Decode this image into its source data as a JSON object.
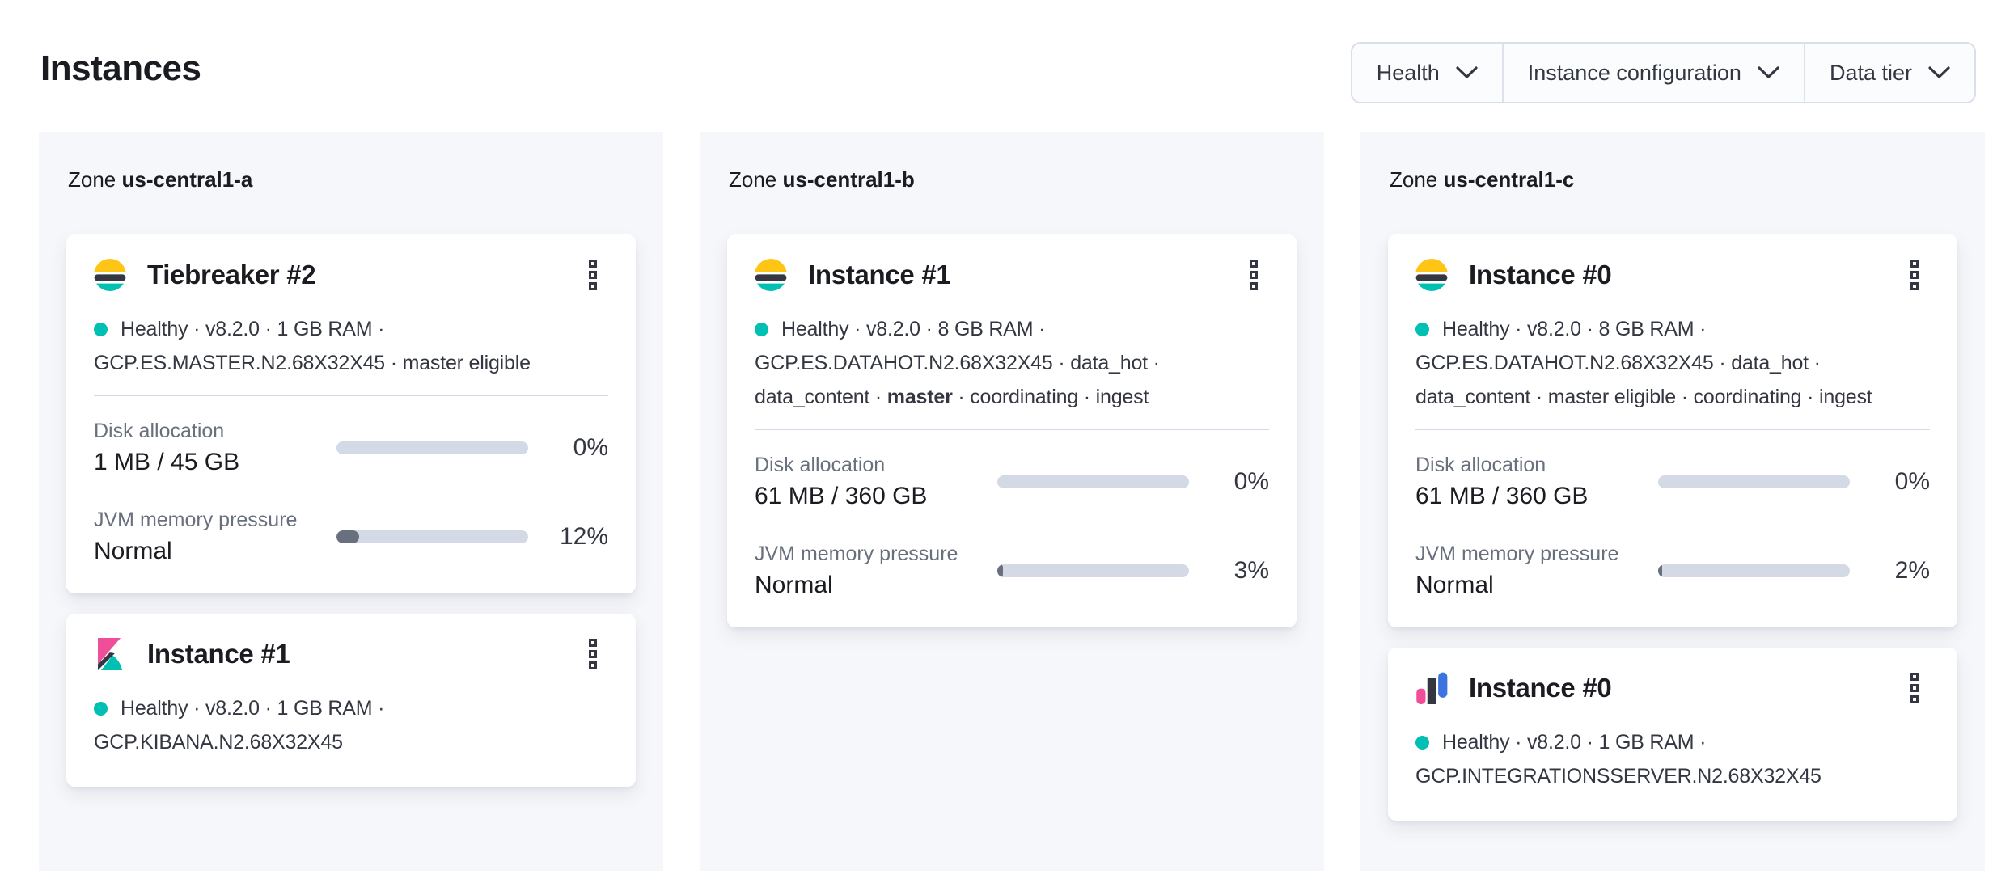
{
  "page": {
    "title": "Instances"
  },
  "filters": [
    {
      "label": "Health"
    },
    {
      "label": "Instance configuration"
    },
    {
      "label": "Data tier"
    }
  ],
  "colors": {
    "status_healthy": "#00BFB3",
    "progress_track": "#D3DAE6",
    "progress_fill": "#69707D",
    "panel_background": "#F5F7FA"
  },
  "zones": [
    {
      "zone_label": "Zone",
      "name": "us-central1-a",
      "instances": [
        {
          "logo": "elasticsearch",
          "title": "Tiebreaker #2",
          "status": "Healthy",
          "meta_lines": [
            {
              "pre": "Healthy · v8.2.0 · 1 GB RAM ·",
              "bold": "",
              "post": ""
            },
            {
              "pre": "GCP.ES.MASTER.N2.68X32X45 · master eligible",
              "bold": "",
              "post": ""
            }
          ],
          "metrics": [
            {
              "label": "Disk allocation",
              "value": "1 MB / 45 GB",
              "percent": 0,
              "percent_label": "0%"
            },
            {
              "label": "JVM memory pressure",
              "value": "Normal",
              "percent": 12,
              "percent_label": "12%"
            }
          ]
        },
        {
          "logo": "kibana",
          "title": "Instance #1",
          "status": "Healthy",
          "meta_lines": [
            {
              "pre": "Healthy · v8.2.0 · 1 GB RAM ·",
              "bold": "",
              "post": ""
            },
            {
              "pre": "GCP.KIBANA.N2.68X32X45",
              "bold": "",
              "post": ""
            }
          ]
        }
      ]
    },
    {
      "zone_label": "Zone",
      "name": "us-central1-b",
      "instances": [
        {
          "logo": "elasticsearch",
          "title": "Instance #1",
          "status": "Healthy",
          "meta_lines": [
            {
              "pre": "Healthy · v8.2.0 · 8 GB RAM ·",
              "bold": "",
              "post": ""
            },
            {
              "pre": "GCP.ES.DATAHOT.N2.68X32X45 · data_hot ·",
              "bold": "",
              "post": ""
            },
            {
              "pre": "data_content · ",
              "bold": "master",
              "post": " · coordinating · ingest"
            }
          ],
          "metrics": [
            {
              "label": "Disk allocation",
              "value": "61 MB / 360 GB",
              "percent": 0,
              "percent_label": "0%"
            },
            {
              "label": "JVM memory pressure",
              "value": "Normal",
              "percent": 3,
              "percent_label": "3%"
            }
          ]
        }
      ]
    },
    {
      "zone_label": "Zone",
      "name": "us-central1-c",
      "instances": [
        {
          "logo": "elasticsearch",
          "title": "Instance #0",
          "status": "Healthy",
          "meta_lines": [
            {
              "pre": "Healthy · v8.2.0 · 8 GB RAM ·",
              "bold": "",
              "post": ""
            },
            {
              "pre": "GCP.ES.DATAHOT.N2.68X32X45 · data_hot ·",
              "bold": "",
              "post": ""
            },
            {
              "pre": "data_content · master eligible · coordinating · ingest",
              "bold": "",
              "post": ""
            }
          ],
          "metrics": [
            {
              "label": "Disk allocation",
              "value": "61 MB / 360 GB",
              "percent": 0,
              "percent_label": "0%"
            },
            {
              "label": "JVM memory pressure",
              "value": "Normal",
              "percent": 2,
              "percent_label": "2%"
            }
          ]
        },
        {
          "logo": "integrations-server",
          "title": "Instance #0",
          "status": "Healthy",
          "meta_lines": [
            {
              "pre": "Healthy · v8.2.0 · 1 GB RAM ·",
              "bold": "",
              "post": ""
            },
            {
              "pre": "GCP.INTEGRATIONSSERVER.N2.68X32X45",
              "bold": "",
              "post": ""
            }
          ]
        }
      ]
    }
  ]
}
